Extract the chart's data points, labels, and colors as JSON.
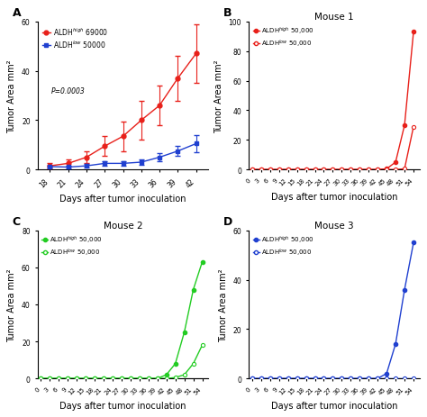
{
  "panel_A": {
    "label": "A",
    "xlabel": "Days after tumor inoculation",
    "ylabel": "Tumor Area mm²",
    "pvalue": "P=0.0003",
    "ylim": [
      0,
      60
    ],
    "yticks": [
      0,
      20,
      40,
      60
    ],
    "days": [
      18,
      21,
      24,
      27,
      30,
      33,
      36,
      39,
      42
    ],
    "high_mean": [
      1.5,
      2.5,
      5.0,
      9.5,
      13.5,
      20.0,
      26.0,
      37.0,
      47.0
    ],
    "high_err": [
      1.0,
      1.5,
      2.5,
      4.0,
      6.0,
      8.0,
      8.0,
      9.0,
      12.0
    ],
    "low_mean": [
      1.2,
      1.0,
      1.5,
      2.5,
      2.5,
      3.0,
      5.0,
      7.5,
      10.5
    ],
    "low_err": [
      0.5,
      0.5,
      0.8,
      1.0,
      1.0,
      1.0,
      1.5,
      2.0,
      3.5
    ],
    "high_color": "#E8201A",
    "low_color": "#2040D0",
    "high_label": "ALDH$^{high}$ 69000",
    "low_label": "ALDH$^{low}$ 50000"
  },
  "panel_B": {
    "title": "Mouse 1",
    "label": "B",
    "xlabel": "Days after tumor inoculation",
    "ylabel": "Tumor Area mm²",
    "ylim": [
      0,
      100
    ],
    "yticks": [
      0,
      20,
      40,
      60,
      80,
      100
    ],
    "days": [
      0,
      3,
      6,
      9,
      12,
      15,
      18,
      21,
      24,
      27,
      30,
      33,
      36,
      39,
      42,
      45,
      48,
      51,
      54
    ],
    "high_vals": [
      0,
      0,
      0,
      0,
      0,
      0,
      0,
      0,
      0,
      0,
      0,
      0,
      0,
      0,
      0,
      0.5,
      5,
      30,
      93
    ],
    "low_vals": [
      0,
      0,
      0,
      0,
      0,
      0,
      0,
      0,
      0,
      0,
      0,
      0,
      0,
      0,
      0,
      0,
      0,
      0.5,
      29
    ],
    "high_color": "#E8201A",
    "low_color": "#E8201A",
    "high_label": "ALDH$^{high}$ 50,000",
    "low_label": "ALDH$^{low}$ 50,000"
  },
  "panel_C": {
    "title": "Mouse 2",
    "label": "C",
    "xlabel": "Days after tumor inoculation",
    "ylabel": "Tumor Area mm²",
    "ylim": [
      0,
      80
    ],
    "yticks": [
      0,
      20,
      40,
      60,
      80
    ],
    "days": [
      0,
      3,
      6,
      9,
      12,
      15,
      18,
      21,
      24,
      27,
      30,
      33,
      36,
      39,
      42,
      45,
      48,
      51,
      54
    ],
    "high_vals": [
      0,
      0,
      0,
      0,
      0,
      0,
      0,
      0,
      0,
      0,
      0,
      0,
      0,
      0,
      2,
      8,
      25,
      48,
      63
    ],
    "low_vals": [
      0,
      0,
      0,
      0,
      0,
      0,
      0,
      0,
      0,
      0,
      0,
      0,
      0,
      0,
      0,
      0.5,
      2,
      8,
      18
    ],
    "high_color": "#22CC22",
    "low_color": "#22CC22",
    "high_label": "ALDH$^{high}$ 50,000",
    "low_label": "ALDH$^{low}$ 50,000"
  },
  "panel_D": {
    "title": "Mouse 3",
    "label": "D",
    "xlabel": "Days after tumor inoculation",
    "ylabel": "Tumor Area mm²",
    "ylim": [
      0,
      60
    ],
    "yticks": [
      0,
      20,
      40,
      60
    ],
    "days": [
      0,
      3,
      6,
      9,
      12,
      15,
      18,
      21,
      24,
      27,
      30,
      33,
      36,
      39,
      42,
      45,
      48,
      51,
      54
    ],
    "high_vals": [
      0,
      0,
      0,
      0,
      0,
      0,
      0,
      0,
      0,
      0,
      0,
      0,
      0,
      0,
      0,
      2,
      14,
      36,
      55
    ],
    "low_vals": [
      0,
      0,
      0,
      0,
      0,
      0,
      0,
      0,
      0,
      0,
      0,
      0,
      0,
      0,
      0,
      0,
      0,
      0,
      0
    ],
    "high_color": "#2040D0",
    "low_color": "#2040D0",
    "high_label": "ALDH$^{high}$ 50,000",
    "low_label": "ALDH$^{low}$ 50,000"
  },
  "bg_color": "#FFFFFF",
  "font_size": 7,
  "tick_label_size": 5.5
}
